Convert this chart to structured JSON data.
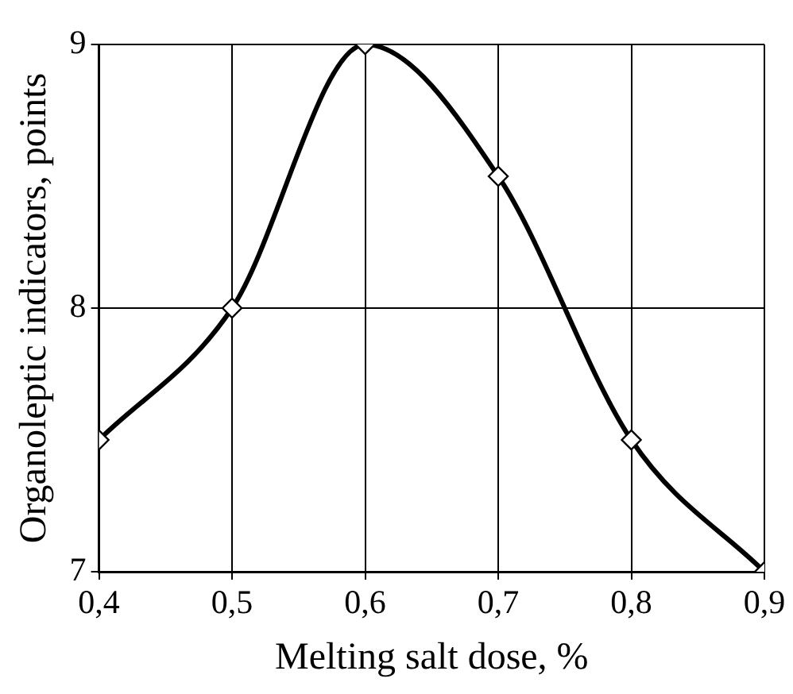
{
  "chart_data": {
    "type": "line",
    "xlabel": "Melting salt dose, %",
    "ylabel": "Organoleptic indicators, points",
    "x": [
      0.4,
      0.5,
      0.6,
      0.7,
      0.8,
      0.9
    ],
    "series": [
      {
        "color": "#000000",
        "values": [
          7.5,
          8,
          9,
          8.5,
          7.5,
          7
        ]
      }
    ],
    "xlim": [
      0.4,
      0.9
    ],
    "xticks": [
      {
        "value": 0.4,
        "label": "0,4"
      },
      {
        "value": 0.5,
        "label": "0,5"
      },
      {
        "value": 0.6,
        "label": "0,6"
      },
      {
        "value": 0.7,
        "label": "0,7"
      },
      {
        "value": 0.8,
        "label": "0,8"
      },
      {
        "value": 0.9,
        "label": "0,9"
      }
    ],
    "ylim": [
      7,
      9
    ],
    "yticks": [
      7,
      8,
      9
    ],
    "grid": true,
    "legend": false,
    "marker": "diamond",
    "line_style": "solid"
  }
}
